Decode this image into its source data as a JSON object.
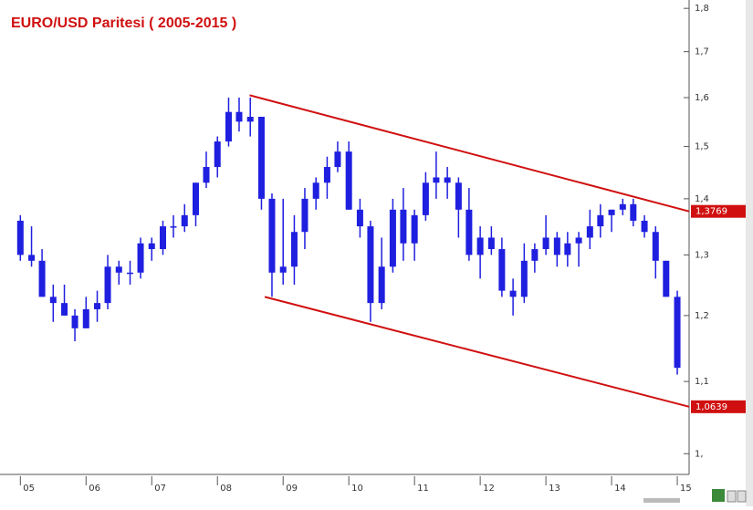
{
  "chart_data": {
    "type": "candlestick",
    "title": "EURO/USD Paritesi ( 2005-2015 )",
    "log_scale": true,
    "color": "#1f1fe0",
    "xlim": [
      2004.69,
      2015.18
    ],
    "xticks": [
      {
        "value": 2005,
        "label": "05"
      },
      {
        "value": 2006,
        "label": "06"
      },
      {
        "value": 2007,
        "label": "07"
      },
      {
        "value": 2008,
        "label": "08"
      },
      {
        "value": 2009,
        "label": "09"
      },
      {
        "value": 2010,
        "label": "10"
      },
      {
        "value": 2011,
        "label": "11"
      },
      {
        "value": 2012,
        "label": "12"
      },
      {
        "value": 2013,
        "label": "13"
      },
      {
        "value": 2014,
        "label": "14"
      },
      {
        "value": 2015,
        "label": "15"
      }
    ],
    "ylim": [
      0.973,
      1.82
    ],
    "yticks": [
      {
        "value": 1.0,
        "label": "1,"
      },
      {
        "value": 1.1,
        "label": "1,1"
      },
      {
        "value": 1.2,
        "label": "1,2"
      },
      {
        "value": 1.3,
        "label": "1,3"
      },
      {
        "value": 1.4,
        "label": "1,4"
      },
      {
        "value": 1.5,
        "label": "1,5"
      },
      {
        "value": 1.6,
        "label": "1,6"
      },
      {
        "value": 1.7,
        "label": "1,7"
      },
      {
        "value": 1.8,
        "label": "1,8"
      }
    ],
    "x": [
      2005.0,
      2005.17,
      2005.33,
      2005.5,
      2005.67,
      2005.83,
      2006.0,
      2006.17,
      2006.33,
      2006.5,
      2006.67,
      2006.83,
      2007.0,
      2007.17,
      2007.33,
      2007.5,
      2007.67,
      2007.83,
      2008.0,
      2008.17,
      2008.33,
      2008.5,
      2008.67,
      2008.83,
      2009.0,
      2009.17,
      2009.33,
      2009.5,
      2009.67,
      2009.83,
      2010.0,
      2010.17,
      2010.33,
      2010.5,
      2010.67,
      2010.83,
      2011.0,
      2011.17,
      2011.33,
      2011.5,
      2011.67,
      2011.83,
      2012.0,
      2012.17,
      2012.33,
      2012.5,
      2012.67,
      2012.83,
      2013.0,
      2013.17,
      2013.33,
      2013.5,
      2013.67,
      2013.83,
      2014.0,
      2014.17,
      2014.33,
      2014.5,
      2014.67,
      2014.83,
      2015.0
    ],
    "open": [
      1.36,
      1.3,
      1.29,
      1.23,
      1.22,
      1.2,
      1.18,
      1.21,
      1.22,
      1.28,
      1.27,
      1.27,
      1.32,
      1.31,
      1.35,
      1.35,
      1.37,
      1.43,
      1.46,
      1.51,
      1.57,
      1.55,
      1.56,
      1.4,
      1.27,
      1.28,
      1.34,
      1.4,
      1.43,
      1.46,
      1.49,
      1.38,
      1.35,
      1.22,
      1.28,
      1.38,
      1.32,
      1.37,
      1.43,
      1.44,
      1.43,
      1.38,
      1.3,
      1.33,
      1.31,
      1.24,
      1.23,
      1.29,
      1.31,
      1.33,
      1.3,
      1.32,
      1.33,
      1.35,
      1.37,
      1.38,
      1.39,
      1.36,
      1.34,
      1.29,
      1.23
    ],
    "high": [
      1.37,
      1.35,
      1.31,
      1.25,
      1.25,
      1.21,
      1.23,
      1.24,
      1.3,
      1.29,
      1.29,
      1.33,
      1.33,
      1.36,
      1.37,
      1.39,
      1.43,
      1.49,
      1.52,
      1.6,
      1.6,
      1.6,
      1.56,
      1.41,
      1.4,
      1.37,
      1.42,
      1.44,
      1.48,
      1.51,
      1.51,
      1.4,
      1.36,
      1.33,
      1.4,
      1.42,
      1.38,
      1.45,
      1.49,
      1.46,
      1.44,
      1.42,
      1.35,
      1.35,
      1.33,
      1.26,
      1.32,
      1.32,
      1.37,
      1.34,
      1.34,
      1.34,
      1.38,
      1.39,
      1.38,
      1.4,
      1.4,
      1.37,
      1.35,
      1.29,
      1.24
    ],
    "low": [
      1.29,
      1.28,
      1.23,
      1.19,
      1.2,
      1.16,
      1.18,
      1.19,
      1.21,
      1.25,
      1.25,
      1.26,
      1.29,
      1.3,
      1.33,
      1.34,
      1.35,
      1.42,
      1.44,
      1.5,
      1.53,
      1.52,
      1.38,
      1.23,
      1.25,
      1.25,
      1.31,
      1.38,
      1.4,
      1.45,
      1.38,
      1.33,
      1.19,
      1.21,
      1.27,
      1.29,
      1.29,
      1.36,
      1.4,
      1.4,
      1.33,
      1.29,
      1.26,
      1.3,
      1.23,
      1.2,
      1.22,
      1.27,
      1.3,
      1.28,
      1.28,
      1.28,
      1.31,
      1.33,
      1.34,
      1.37,
      1.35,
      1.33,
      1.26,
      1.23,
      1.11
    ],
    "close": [
      1.3,
      1.29,
      1.23,
      1.22,
      1.2,
      1.18,
      1.21,
      1.22,
      1.28,
      1.27,
      1.27,
      1.32,
      1.31,
      1.35,
      1.35,
      1.37,
      1.43,
      1.46,
      1.51,
      1.57,
      1.55,
      1.56,
      1.4,
      1.27,
      1.28,
      1.34,
      1.4,
      1.43,
      1.46,
      1.49,
      1.38,
      1.35,
      1.22,
      1.28,
      1.38,
      1.32,
      1.37,
      1.43,
      1.44,
      1.43,
      1.38,
      1.3,
      1.33,
      1.31,
      1.24,
      1.23,
      1.29,
      1.31,
      1.33,
      1.3,
      1.32,
      1.33,
      1.35,
      1.37,
      1.38,
      1.39,
      1.36,
      1.34,
      1.29,
      1.23,
      1.12
    ],
    "trendlines": [
      {
        "color": "#d01010",
        "x": [
          2008.49,
          2015.18
        ],
        "values": [
          1.605,
          1.3769
        ],
        "label": "1,3769"
      },
      {
        "color": "#d01010",
        "x": [
          2008.72,
          2015.18
        ],
        "values": [
          1.23,
          1.0639
        ],
        "label": "1,0639"
      }
    ]
  }
}
